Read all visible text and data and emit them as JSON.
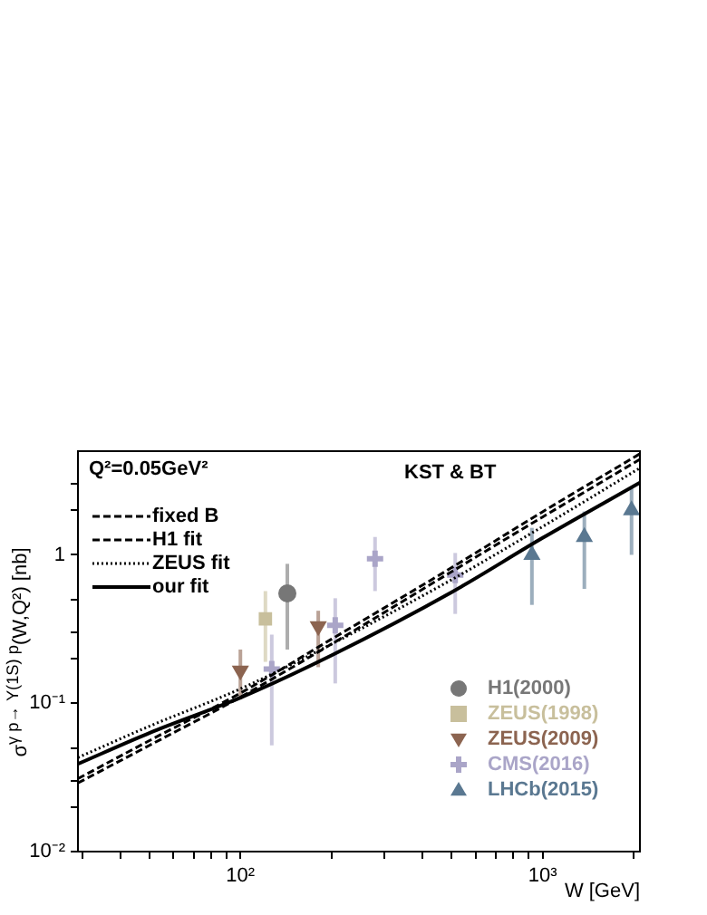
{
  "chart_data": {
    "type": "scatter",
    "xlabel": "W [GeV]",
    "ylabel": "σ$^{γ p→ Υ(1S) p}$(W,Q²) [nb]",
    "annotations": [
      "Q²=0.05GeV²",
      "KST & BT"
    ],
    "log": "xy",
    "grid": false,
    "legend": "left",
    "xlim": [
      29,
      2100
    ],
    "ylim": [
      0.01,
      5
    ],
    "xticks": [
      {
        "value": 30,
        "label": null
      },
      {
        "value": 40,
        "label": null
      },
      {
        "value": 50,
        "label": null
      },
      {
        "value": 60,
        "label": null
      },
      {
        "value": 70,
        "label": null
      },
      {
        "value": 80,
        "label": null
      },
      {
        "value": 90,
        "label": null
      },
      {
        "value": 100,
        "label": "10²"
      },
      {
        "value": 200,
        "label": null
      },
      {
        "value": 300,
        "label": null
      },
      {
        "value": 400,
        "label": null
      },
      {
        "value": 500,
        "label": null
      },
      {
        "value": 600,
        "label": null
      },
      {
        "value": 700,
        "label": null
      },
      {
        "value": 800,
        "label": null
      },
      {
        "value": 900,
        "label": null
      },
      {
        "value": 1000,
        "label": "10³"
      },
      {
        "value": 2000,
        "label": null
      }
    ],
    "yticks": [
      {
        "value": 0.01,
        "label": "10⁻²"
      },
      {
        "value": 0.02,
        "label": null
      },
      {
        "value": 0.03,
        "label": null
      },
      {
        "value": 0.05,
        "label": null
      },
      {
        "value": 0.1,
        "label": "10⁻¹"
      },
      {
        "value": 0.2,
        "label": null
      },
      {
        "value": 0.3,
        "label": null
      },
      {
        "value": 0.5,
        "label": null
      },
      {
        "value": 1,
        "label": "1"
      },
      {
        "value": 2,
        "label": null
      },
      {
        "value": 3,
        "label": null
      }
    ],
    "series": [
      {
        "name": "fixed B",
        "type": "line",
        "color": "#000000",
        "line_style": "dashed",
        "marker": "none",
        "x": [
          29,
          50,
          100,
          200,
          500,
          1000,
          2100
        ],
        "values": [
          0.031,
          0.056,
          0.117,
          0.27,
          0.82,
          1.95,
          4.8
        ]
      },
      {
        "name": "H1 fit",
        "type": "line",
        "color": "#000000",
        "line_style": "dashed",
        "marker": "none",
        "x": [
          29,
          50,
          100,
          200,
          500,
          1000,
          2100
        ],
        "values": [
          0.029,
          0.052,
          0.11,
          0.25,
          0.77,
          1.8,
          4.4
        ]
      },
      {
        "name": "ZEUS fit",
        "type": "line",
        "color": "#000000",
        "line_style": "dotted",
        "marker": "none",
        "x": [
          29,
          50,
          100,
          200,
          500,
          1000,
          2100
        ],
        "values": [
          0.043,
          0.07,
          0.125,
          0.25,
          0.68,
          1.55,
          3.85
        ]
      },
      {
        "name": "our fit",
        "type": "line",
        "color": "#000000",
        "line_style": "solid",
        "marker": "none",
        "x": [
          29,
          50,
          100,
          200,
          500,
          1000,
          2100
        ],
        "values": [
          0.039,
          0.063,
          0.109,
          0.21,
          0.56,
          1.3,
          3.07
        ]
      },
      {
        "name": "H1(2000)",
        "color": "#777777",
        "marker": "circle",
        "x": [
          143
        ],
        "values": [
          0.55
        ],
        "errors": [
          [
            0.23,
            0.87
          ]
        ]
      },
      {
        "name": "ZEUS(1998)",
        "color": "#c8bf9c",
        "marker": "square",
        "x": [
          121
        ],
        "values": [
          0.37
        ],
        "errors": [
          [
            0.19,
            0.57
          ]
        ]
      },
      {
        "name": "ZEUS(2009)",
        "color": "#8c6450",
        "marker": "triangle",
        "x": [
          100,
          181
        ],
        "values": [
          0.166,
          0.33
        ],
        "errors": [
          [
            0.106,
            0.23
          ],
          [
            0.175,
            0.42
          ]
        ]
      },
      {
        "name": "CMS(2016)",
        "color": "#aaa5c8",
        "marker": "cross",
        "x": [
          127,
          206,
          279,
          514
        ],
        "values": [
          0.17,
          0.335,
          0.94,
          0.73
        ],
        "errors": [
          [
            0.052,
            0.29
          ],
          [
            0.136,
            0.51
          ],
          [
            0.57,
            1.32
          ],
          [
            0.4,
            1.03
          ]
        ]
      },
      {
        "name": "LHCb(2015)",
        "color": "#5a7891",
        "marker": "triangle",
        "x": [
          922,
          1375,
          1970
        ],
        "values": [
          1.0,
          1.32,
          2.0
        ],
        "errors": [
          [
            0.46,
            1.52
          ],
          [
            0.59,
            1.96
          ],
          [
            1.0,
            2.8
          ]
        ]
      }
    ]
  }
}
